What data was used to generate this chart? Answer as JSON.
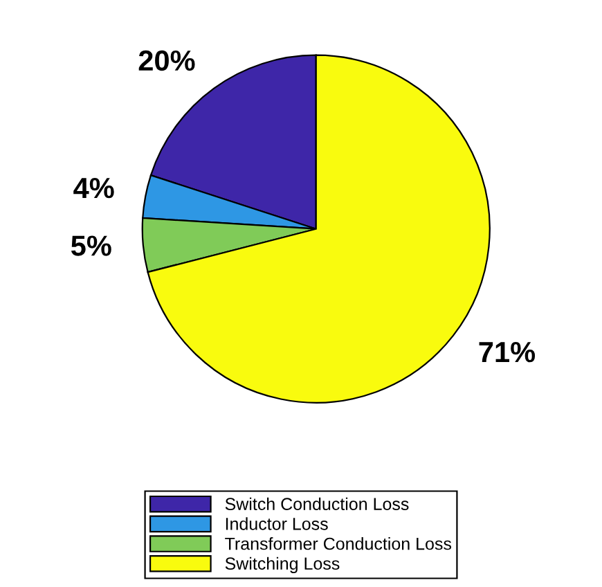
{
  "chart_data": {
    "type": "pie",
    "categories": [
      "Switch Conduction Loss",
      "Inductor Loss",
      "Transformer Conduction Loss",
      "Switching Loss"
    ],
    "values": [
      20,
      4,
      5,
      71
    ],
    "value_labels": [
      "20%",
      "4%",
      "5%",
      "71%"
    ],
    "colors": [
      "#3e26a8",
      "#2e97e4",
      "#80cb58",
      "#f9fb0e"
    ],
    "legend": "bottom"
  }
}
